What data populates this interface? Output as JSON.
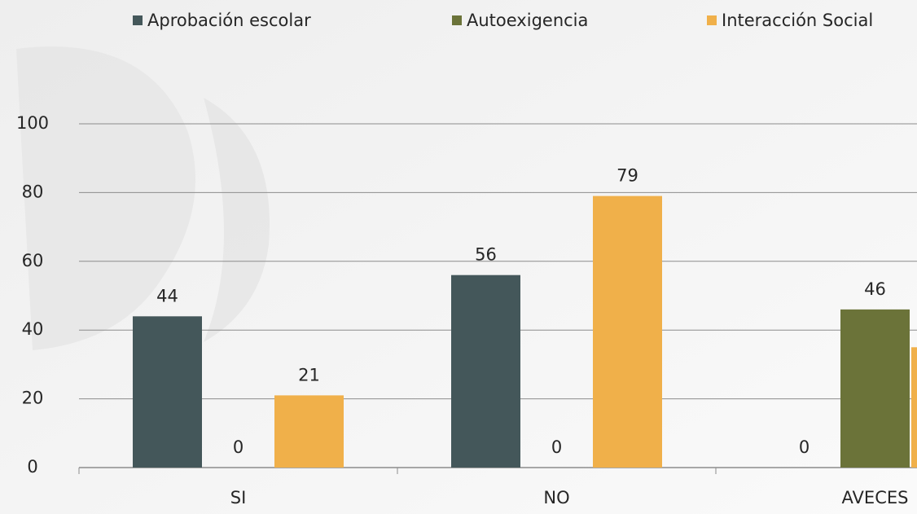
{
  "chart_data": {
    "type": "bar",
    "categories": [
      "SI",
      "NO",
      "AVECES"
    ],
    "series": [
      {
        "name": "Aprobación escolar",
        "color": "#44575a",
        "values": [
          44,
          56,
          0
        ]
      },
      {
        "name": "Autoexigencia",
        "color": "#6b7339",
        "values": [
          0,
          0,
          46
        ]
      },
      {
        "name": "Interacción Social",
        "color": "#f0b04a",
        "values": [
          21,
          79,
          35
        ]
      }
    ],
    "ylim": [
      0,
      100
    ],
    "yticks": [
      0,
      20,
      40,
      60,
      80,
      100
    ],
    "grid": true,
    "legend": "top"
  }
}
